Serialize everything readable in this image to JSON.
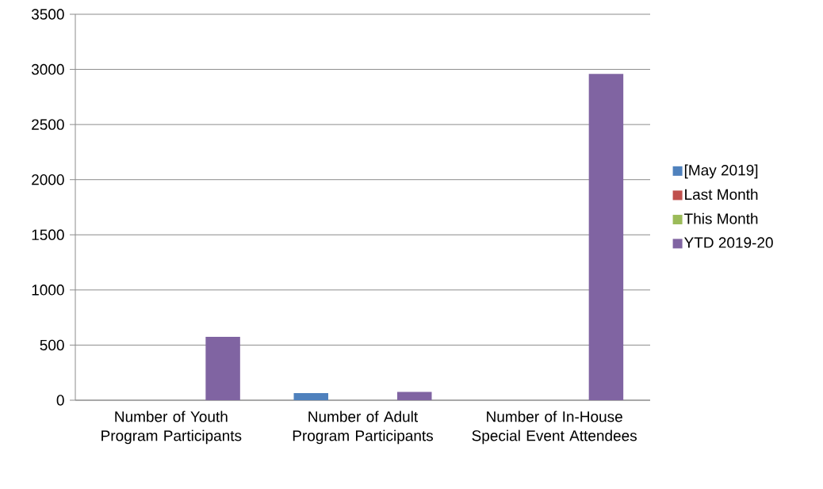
{
  "chart_data": {
    "type": "bar",
    "categories": [
      "Number of Youth Program Participants",
      "Number of Adult Program Participants",
      "Number of In-House Special Event Attendees"
    ],
    "series": [
      {
        "name": "[May 2019]",
        "color": "#4f81bd",
        "values": [
          null,
          65,
          null
        ]
      },
      {
        "name": "Last Month",
        "color": "#c0504d",
        "values": [
          null,
          null,
          null
        ]
      },
      {
        "name": "This Month",
        "color": "#9bbb59",
        "values": [
          null,
          null,
          null
        ]
      },
      {
        "name": "YTD 2019-20",
        "color": "#8064a2",
        "values": [
          575,
          75,
          2960
        ]
      }
    ],
    "ylim": [
      0,
      3500
    ],
    "yticks": [
      0,
      500,
      1000,
      1500,
      2000,
      2500,
      3000,
      3500
    ],
    "grid": "y",
    "legend": "right"
  }
}
